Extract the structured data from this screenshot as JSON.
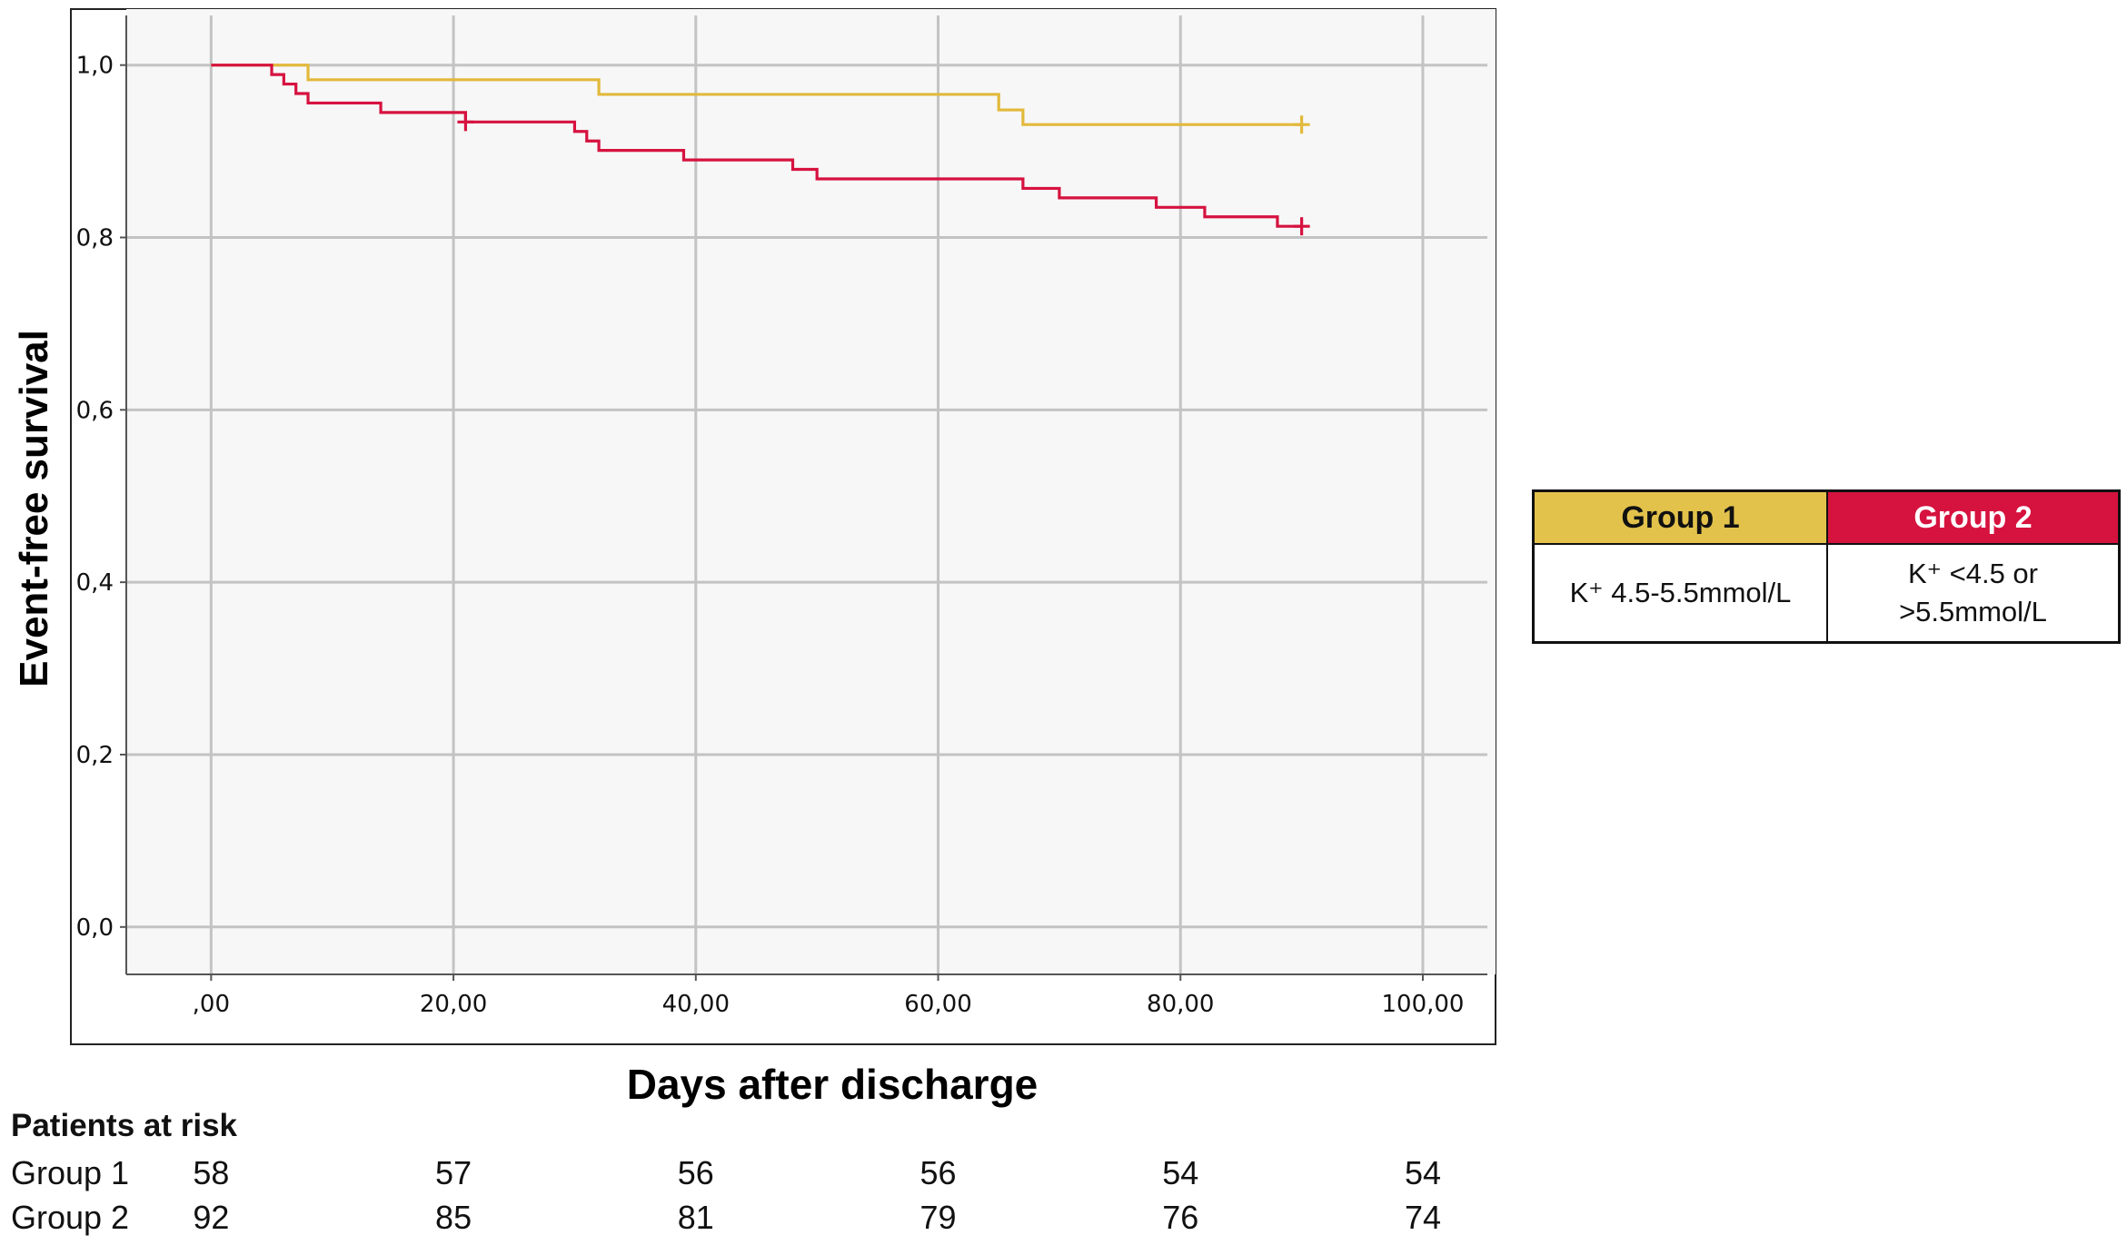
{
  "chart_data": {
    "type": "line",
    "xlabel": "Days after discharge",
    "ylabel": "Event-free survival",
    "xlim": [
      -7,
      106
    ],
    "ylim": [
      -0.055,
      1.065
    ],
    "x_ticks": [
      0,
      20,
      40,
      60,
      80,
      100
    ],
    "x_tick_labels": [
      ",00",
      "20,00",
      "40,00",
      "60,00",
      "80,00",
      "100,00"
    ],
    "y_ticks": [
      0,
      0.2,
      0.4,
      0.6,
      0.8,
      1.0
    ],
    "y_tick_labels": [
      "0,0",
      "0,2",
      "0,4",
      "0,6",
      "0,8",
      "1,0"
    ],
    "grid": true,
    "step": true,
    "series": [
      {
        "name": "Group 1",
        "color": "#e2b93b",
        "x": [
          0,
          8,
          32,
          65,
          67,
          90
        ],
        "y": [
          1.0,
          0.983,
          0.966,
          0.948,
          0.931,
          0.931
        ],
        "censored": [
          {
            "x": 90,
            "y": 0.931
          }
        ]
      },
      {
        "name": "Group 2",
        "color": "#d6123f",
        "x": [
          0,
          5,
          6,
          7,
          8,
          14,
          21,
          30,
          31,
          32,
          39,
          48,
          50,
          67,
          70,
          78,
          82,
          88,
          90
        ],
        "y": [
          1.0,
          0.989,
          0.978,
          0.967,
          0.956,
          0.945,
          0.934,
          0.923,
          0.912,
          0.901,
          0.89,
          0.879,
          0.868,
          0.857,
          0.846,
          0.835,
          0.824,
          0.813,
          0.813
        ],
        "censored": [
          {
            "x": 21,
            "y": 0.934
          },
          {
            "x": 90,
            "y": 0.813
          }
        ]
      }
    ]
  },
  "legend": {
    "group1": {
      "name": "Group 1",
      "line1": "K⁺ 4.5-5.5mmol/L",
      "line2": "",
      "color": "#e2c24b"
    },
    "group2": {
      "name": "Group 2",
      "line1": "K⁺ <4.5 or",
      "line2": ">5.5mmol/L",
      "color": "#d6123f"
    }
  },
  "risk_table": {
    "title": "Patients at risk",
    "rows": [
      {
        "name": "Group 1",
        "values": [
          "58",
          "57",
          "56",
          "56",
          "54",
          "54"
        ]
      },
      {
        "name": "Group 2",
        "values": [
          "92",
          "85",
          "81",
          "79",
          "76",
          "74"
        ]
      }
    ]
  }
}
